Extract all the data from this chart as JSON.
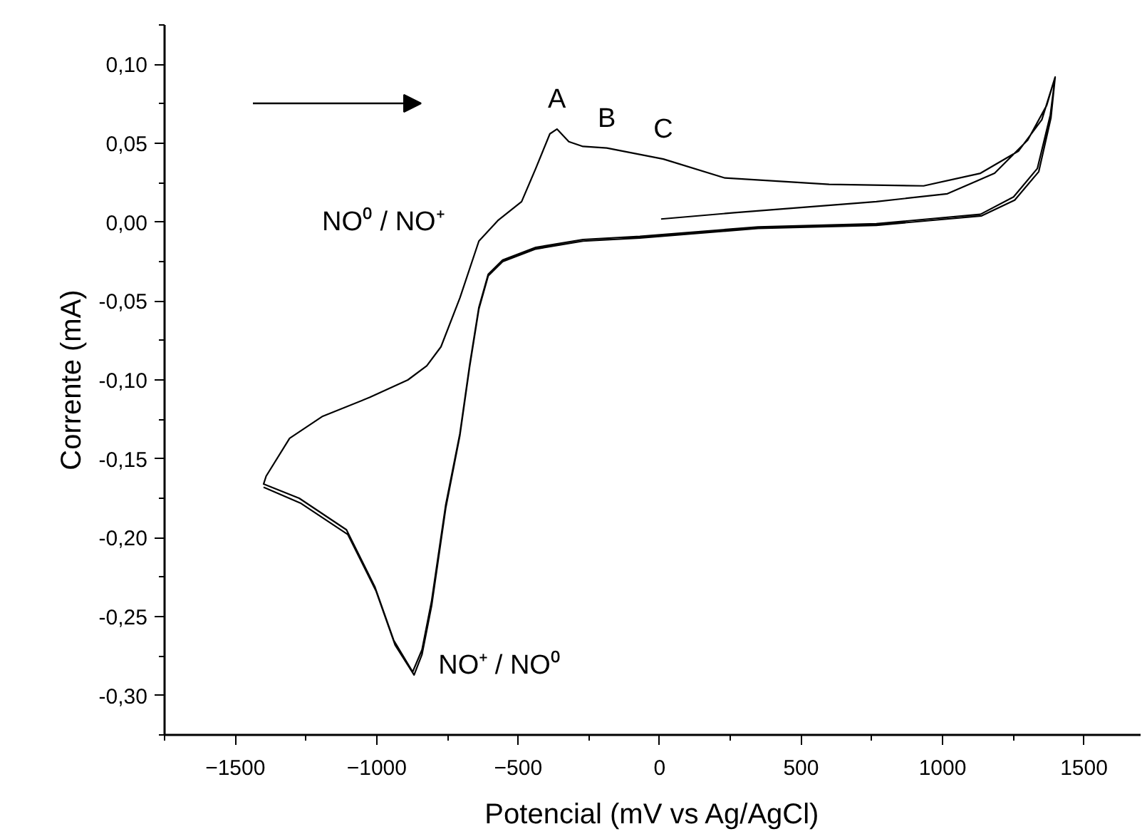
{
  "chart_data": {
    "type": "line",
    "xlabel": "Potencial (mV vs Ag/AgCl)",
    "ylabel": "Corrente (mA)",
    "xlim": [
      -1750,
      1700
    ],
    "ylim": [
      -0.325,
      0.125
    ],
    "xticks": [
      -1500,
      -1000,
      -500,
      0,
      500,
      1000,
      1500
    ],
    "yticks": [
      {
        "value": 0.1,
        "label": "0,10"
      },
      {
        "value": 0.05,
        "label": "0,05"
      },
      {
        "value": 0,
        "label": "0,00"
      },
      {
        "value": -0.05,
        "label": "-0,05"
      },
      {
        "value": -0.1,
        "label": "-0,10"
      },
      {
        "value": -0.15,
        "label": "-0,15"
      },
      {
        "value": -0.2,
        "label": "-0,20"
      },
      {
        "value": -0.25,
        "label": "-0,25"
      },
      {
        "value": -0.3,
        "label": "-0,30"
      }
    ],
    "series": [
      {
        "color": "#000000",
        "x": [
          5,
          264,
          766,
          1017,
          1184,
          1301,
          1368,
          1398,
          1381,
          1335,
          1251,
          1134,
          766,
          348,
          -70,
          -271,
          -438,
          -555,
          -606,
          -639,
          -672,
          -706,
          -756,
          -806,
          -840,
          -873,
          -940,
          -1007,
          -1107,
          -1274,
          -1400,
          -1391,
          -1308,
          -1191,
          -1024,
          -890,
          -823,
          -773,
          -706,
          -639,
          -572,
          -488,
          -438,
          -388,
          -363,
          -321,
          -271,
          -187,
          13,
          231,
          599,
          933,
          1134,
          1268,
          1351,
          1398,
          1383,
          1340,
          1255,
          1138,
          766,
          348,
          -70,
          -271,
          -438,
          -555,
          -606,
          -639,
          -672,
          -706,
          -756,
          -806,
          -840,
          -868,
          -935,
          -1002,
          -1102,
          -1270,
          -1400
        ],
        "values": [
          0.002,
          0.006,
          0.013,
          0.018,
          0.031,
          0.052,
          0.074,
          0.092,
          0.068,
          0.034,
          0.016,
          0.005,
          -0.001,
          -0.003,
          -0.009,
          -0.011,
          -0.016,
          -0.024,
          -0.033,
          -0.054,
          -0.091,
          -0.134,
          -0.179,
          -0.24,
          -0.271,
          -0.285,
          -0.265,
          -0.231,
          -0.195,
          -0.175,
          -0.166,
          -0.161,
          -0.137,
          -0.123,
          -0.111,
          -0.1,
          -0.091,
          -0.079,
          -0.048,
          -0.012,
          0.001,
          0.013,
          0.034,
          0.056,
          0.059,
          0.051,
          0.048,
          0.047,
          0.04,
          0.028,
          0.024,
          0.023,
          0.031,
          0.045,
          0.065,
          0.092,
          0.066,
          0.032,
          0.014,
          0.004,
          -0.002,
          -0.004,
          -0.01,
          -0.012,
          -0.017,
          -0.025,
          -0.034,
          -0.055,
          -0.092,
          -0.135,
          -0.181,
          -0.243,
          -0.274,
          -0.287,
          -0.268,
          -0.234,
          -0.198,
          -0.178,
          -0.168
        ]
      }
    ],
    "annotations": [
      {
        "text": "A",
        "x": -363,
        "y": 0.059
      },
      {
        "text": "B",
        "x": -187,
        "y": 0.047
      },
      {
        "text": "C",
        "x": 13,
        "y": 0.04
      },
      {
        "text": "NO⁰ / NO⁺",
        "x": -600,
        "y": 0.0
      },
      {
        "text": "NO⁺ / NO⁰",
        "x": -873,
        "y": -0.285
      }
    ]
  }
}
